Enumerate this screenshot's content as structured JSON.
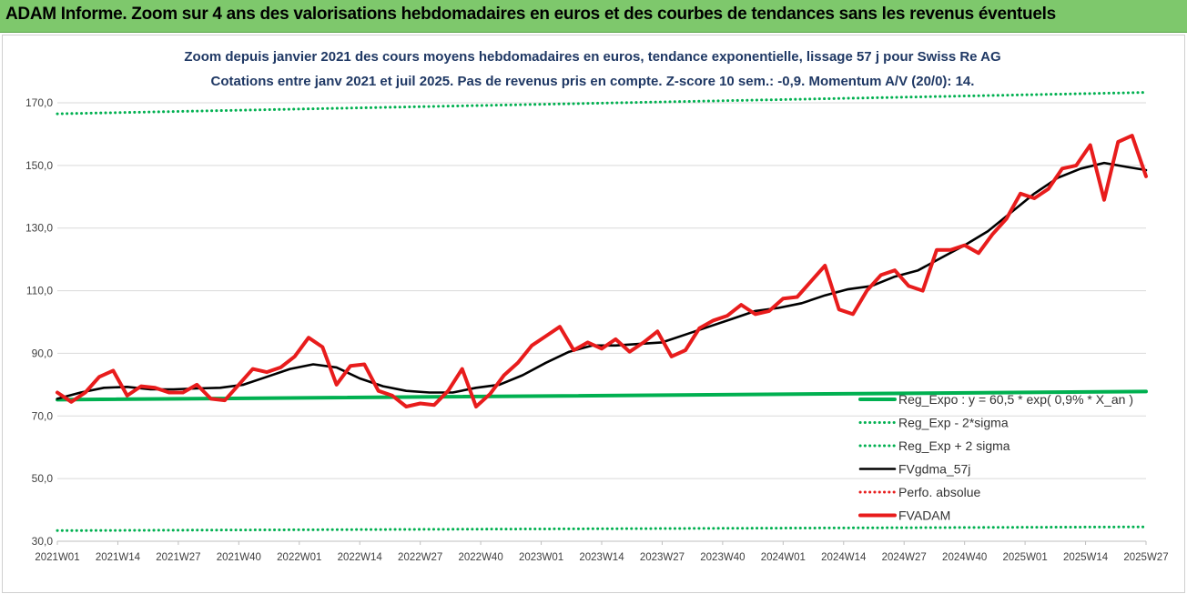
{
  "header": {
    "title": "ADAM Informe. Zoom sur 4 ans des valorisations hebdomadaires en euros et des courbes de tendances sans les revenus éventuels"
  },
  "colors": {
    "header_bg": "#7ec86c",
    "title_text": "#1f3864",
    "regression": "#00b050",
    "fvgdma": "#000000",
    "fvadam": "#e81c1c",
    "perfo": "#e81c1c",
    "grid": "#d9d9d9"
  },
  "chart_data": {
    "type": "line",
    "title": "Zoom depuis janvier 2021 des cours moyens hebdomadaires en euros, tendance exponentielle, lissage 57 j pour Swiss Re AG",
    "subtitle": "Cotations entre janv 2021 et juil 2025. Pas de revenus pris en compte. Z-score 10 sem.: -0,9. Momentum A/V (20/0): 14.",
    "grid": "horizontal",
    "legend_position": "bottom-right",
    "ylim": [
      30,
      170
    ],
    "y_ticks": [
      "170,0",
      "150,0",
      "130,0",
      "110,0",
      "90,0",
      "70,0",
      "50,0",
      "30,0"
    ],
    "y_tick_values": [
      170,
      150,
      130,
      110,
      90,
      70,
      50,
      30
    ],
    "x_tick_labels": [
      "2021W01",
      "2021W14",
      "2021W27",
      "2021W40",
      "2022W01",
      "2022W14",
      "2022W27",
      "2022W40",
      "2023W01",
      "2023W14",
      "2023W27",
      "2023W40",
      "2024W01",
      "2024W14",
      "2024W27",
      "2024W40",
      "2025W01",
      "2025W14",
      "2025W27"
    ],
    "n_weeks": 235,
    "series": [
      {
        "name": "Reg_Expo : y = 60,5 * exp( 0,9% * X_an )",
        "style": "solid-thick",
        "color": "#00b050",
        "x": [
          0,
          234
        ],
        "values": [
          75.2,
          77.8
        ]
      },
      {
        "name": "Reg_Exp - 2*sigma",
        "style": "dotted",
        "color": "#00b050",
        "x": [
          0,
          234
        ],
        "values": [
          33.4,
          34.6
        ]
      },
      {
        "name": "Reg_Exp + 2 sigma",
        "style": "dotted",
        "color": "#00b050",
        "x": [
          0,
          234
        ],
        "values": [
          166.5,
          173.3
        ]
      },
      {
        "name": "FVgdma_57j",
        "style": "solid",
        "color": "#000000",
        "x": [
          0,
          5,
          10,
          15,
          20,
          25,
          30,
          35,
          40,
          45,
          50,
          55,
          60,
          65,
          70,
          75,
          80,
          85,
          90,
          95,
          100,
          105,
          110,
          115,
          120,
          125,
          130,
          135,
          140,
          145,
          150,
          155,
          160,
          165,
          170,
          175,
          180,
          185,
          190,
          195,
          200,
          205,
          210,
          215,
          220,
          225,
          230,
          234
        ],
        "values": [
          75.5,
          77.5,
          79,
          79.3,
          78.5,
          78.5,
          78.8,
          79,
          80,
          82.5,
          85,
          86.5,
          85.5,
          82,
          79.5,
          78,
          77.5,
          77.5,
          79,
          80,
          83,
          87,
          90.5,
          92.5,
          92.5,
          93,
          93.5,
          96,
          98.5,
          101,
          103.5,
          104.5,
          106,
          108.5,
          110.5,
          111.5,
          114.5,
          116.5,
          120.5,
          124.5,
          129,
          135,
          141,
          146,
          149,
          150.8,
          149.5,
          148.5
        ]
      },
      {
        "name": "Perfo. absolue",
        "style": "dotted",
        "color": "#e81c1c",
        "x": [],
        "values": []
      },
      {
        "name": "FVADAM",
        "style": "solid-thick",
        "color": "#e81c1c",
        "x": [
          0,
          3,
          6,
          9,
          12,
          15,
          18,
          21,
          24,
          27,
          30,
          33,
          36,
          39,
          42,
          45,
          48,
          51,
          54,
          57,
          60,
          63,
          66,
          69,
          72,
          75,
          78,
          81,
          84,
          87,
          90,
          93,
          96,
          99,
          102,
          105,
          108,
          111,
          114,
          117,
          120,
          123,
          126,
          129,
          132,
          135,
          138,
          141,
          144,
          147,
          150,
          153,
          156,
          159,
          162,
          165,
          168,
          171,
          174,
          177,
          180,
          183,
          186,
          189,
          192,
          195,
          198,
          201,
          204,
          207,
          210,
          213,
          216,
          219,
          222,
          225,
          228,
          231,
          234
        ],
        "values": [
          77.5,
          74.5,
          77.5,
          82.5,
          84.5,
          76.5,
          79.5,
          79,
          77.5,
          77.5,
          80,
          75.5,
          75,
          80,
          85,
          84,
          85.5,
          89,
          95,
          92,
          80,
          86,
          86.5,
          78,
          76.5,
          73,
          74,
          73.5,
          78,
          85,
          73,
          77,
          83,
          87,
          92.5,
          95.5,
          98.5,
          91,
          93.5,
          91.5,
          94.5,
          90.5,
          93.5,
          97,
          89,
          91,
          98,
          100.5,
          102,
          105.5,
          102.5,
          103.5,
          107.5,
          108,
          113,
          118,
          104,
          102.5,
          110,
          115,
          116.5,
          111.5,
          110,
          123,
          123,
          124.5,
          122,
          128,
          133,
          141,
          139.5,
          142.5,
          149,
          150,
          156.5,
          139,
          157.5,
          159.5,
          146.5
        ]
      }
    ]
  }
}
